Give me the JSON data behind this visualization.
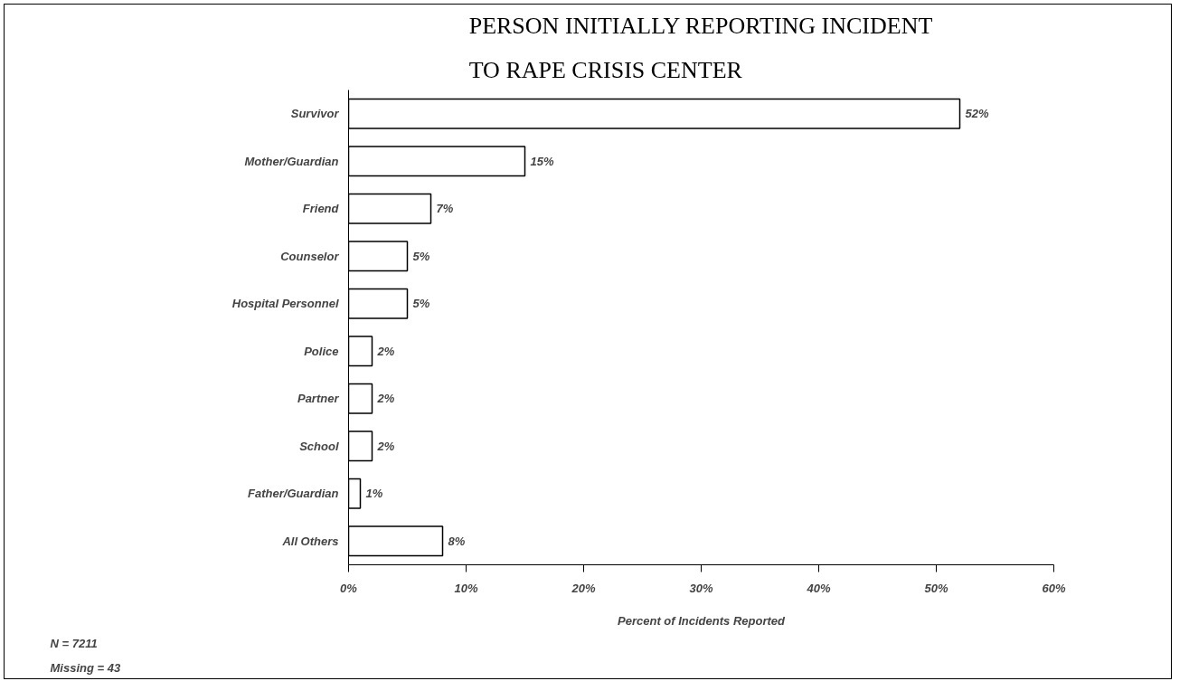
{
  "chart_data": {
    "type": "bar",
    "orientation": "horizontal",
    "title": "PERSON INITIALLY REPORTING INCIDENT\nTO RAPE CRISIS CENTER",
    "xlabel": "Percent of Incidents Reported",
    "categories": [
      "Survivor",
      "Mother/Guardian",
      "Friend",
      "Counselor",
      "Hospital Personnel",
      "Police",
      "Partner",
      "School",
      "Father/Guardian",
      "All Others"
    ],
    "values": [
      52,
      15,
      7,
      5,
      5,
      2,
      2,
      2,
      1,
      8
    ],
    "value_labels": [
      "52%",
      "15%",
      "7%",
      "5%",
      "5%",
      "2%",
      "2%",
      "2%",
      "1%",
      "8%"
    ],
    "color": "#ffffff",
    "xlim": [
      0,
      60
    ],
    "xticks": [
      {
        "value": 0,
        "label": "0%"
      },
      {
        "value": 10,
        "label": "10%"
      },
      {
        "value": 20,
        "label": "20%"
      },
      {
        "value": 30,
        "label": "30%"
      },
      {
        "value": 40,
        "label": "40%"
      },
      {
        "value": 50,
        "label": "50%"
      },
      {
        "value": 60,
        "label": "60%"
      }
    ],
    "grid": false,
    "annotations": [
      "N = 7211",
      "Missing = 43"
    ]
  }
}
